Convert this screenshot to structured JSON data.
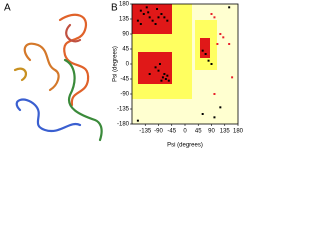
{
  "panel_a": {
    "label": "A"
  },
  "chart_data": {
    "type": "scatter",
    "label": "B",
    "xlabel": "Psi (degrees)",
    "ylabel": "Psi (degrees)",
    "xlim": [
      -180,
      180
    ],
    "ylim": [
      -180,
      180
    ],
    "xticks": [
      -135,
      -90,
      -45,
      0,
      45,
      90,
      135,
      180
    ],
    "yticks": [
      180,
      135,
      90,
      45,
      0,
      -45,
      -90,
      -135,
      -180
    ],
    "series": [
      {
        "color": "#000000",
        "x": [
          -150,
          -140,
          -130,
          -120,
          -110,
          -100,
          -90,
          -80,
          -70,
          -160,
          -60,
          -150,
          -125,
          -95,
          -75,
          -65,
          -60,
          -70,
          -80,
          -90,
          -100,
          -55,
          -120,
          -85,
          60,
          70,
          80,
          90,
          60,
          100,
          -160,
          150,
          120
        ],
        "values": [
          160,
          150,
          170,
          140,
          130,
          120,
          140,
          150,
          140,
          130,
          130,
          120,
          155,
          165,
          -40,
          -45,
          -35,
          -30,
          -50,
          -20,
          -10,
          -50,
          -30,
          0,
          40,
          30,
          10,
          0,
          -150,
          -160,
          -170,
          170,
          -130
        ]
      },
      {
        "color": "#e8202a",
        "x": [
          90,
          100,
          120,
          130,
          110,
          150,
          160,
          100
        ],
        "values": [
          150,
          140,
          90,
          80,
          60,
          60,
          -40,
          -90
        ]
      }
    ]
  }
}
